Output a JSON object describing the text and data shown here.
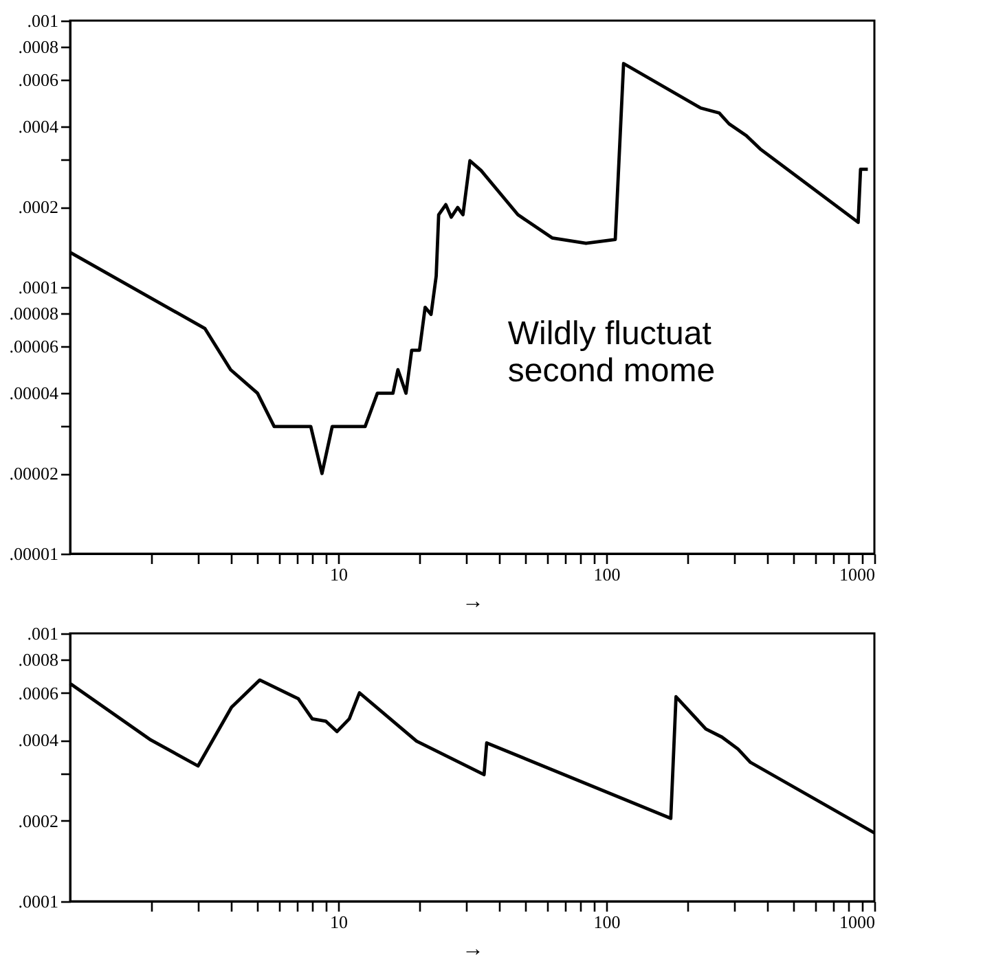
{
  "chart_data": [
    {
      "type": "line",
      "xlabel": "→",
      "log": "xy",
      "grid": false,
      "marker": "none",
      "line_style": "solid",
      "xlim": [
        1,
        1000
      ],
      "ylim": [
        1e-05,
        0.001
      ],
      "xticks": [
        {
          "value": 2,
          "label": null
        },
        {
          "value": 3,
          "label": null
        },
        {
          "value": 4,
          "label": null
        },
        {
          "value": 5,
          "label": null
        },
        {
          "value": 6,
          "label": null
        },
        {
          "value": 7,
          "label": null
        },
        {
          "value": 8,
          "label": null
        },
        {
          "value": 9,
          "label": null
        },
        10,
        {
          "value": 20,
          "label": null
        },
        {
          "value": 30,
          "label": null
        },
        {
          "value": 40,
          "label": null
        },
        {
          "value": 50,
          "label": null
        },
        {
          "value": 60,
          "label": null
        },
        {
          "value": 70,
          "label": null
        },
        {
          "value": 80,
          "label": null
        },
        {
          "value": 90,
          "label": null
        },
        100,
        {
          "value": 200,
          "label": null
        },
        {
          "value": 300,
          "label": null
        },
        {
          "value": 400,
          "label": null
        },
        {
          "value": 500,
          "label": null
        },
        {
          "value": 600,
          "label": null
        },
        {
          "value": 700,
          "label": null
        },
        {
          "value": 800,
          "label": null
        },
        {
          "value": 900,
          "label": null
        },
        1000
      ],
      "yticks": [
        {
          "value": 0.001,
          "label": ".001"
        },
        {
          "value": 0.0008,
          "label": ".0008"
        },
        {
          "value": 0.0006,
          "label": ".0006"
        },
        {
          "value": 0.0004,
          "label": ".0004"
        },
        {
          "value": 0.0003,
          "label": null
        },
        {
          "value": 0.0002,
          "label": ".0002"
        },
        {
          "value": 0.0001,
          "label": ".0001"
        },
        {
          "value": 8e-05,
          "label": ".00008"
        },
        {
          "value": 6e-05,
          "label": ".00006"
        },
        {
          "value": 4e-05,
          "label": ".00004"
        },
        {
          "value": 3e-05,
          "label": null
        },
        {
          "value": 2e-05,
          "label": ".00002"
        },
        {
          "value": 1e-05,
          "label": ".00001"
        }
      ],
      "annotations": [
        "Wildly fluctuat\nsecond mome"
      ],
      "series": [
        {
          "color": "#000000",
          "x": [
            1,
            3.18,
            3.97,
            5.0,
            5.77,
            7.9,
            8.7,
            9.5,
            12.6,
            14.0,
            16,
            16.7,
            17.9,
            18.8,
            20.1,
            21.1,
            22.2,
            23.2,
            23.7,
            25.2,
            26.4,
            27.9,
            29.2,
            31,
            34.1,
            46.8,
            62.8,
            84,
            108,
            116,
            225,
            264,
            287,
            333,
            375,
            870,
            888,
            945
          ],
          "values": [
            0.000135,
            7e-05,
            4.9e-05,
            4e-05,
            3e-05,
            3e-05,
            2e-05,
            3e-05,
            3e-05,
            4e-05,
            4e-05,
            4.9e-05,
            4e-05,
            5.8e-05,
            5.8e-05,
            8.4e-05,
            7.9e-05,
            0.00011,
            0.000187,
            0.000204,
            0.000183,
            0.000199,
            0.000187,
            0.000298,
            0.000274,
            0.000187,
            0.000153,
            0.000146,
            0.000151,
            0.00069,
            0.00047,
            0.00045,
            0.00041,
            0.00037,
            0.00033,
            0.000175,
            0.000277,
            0.000277
          ]
        }
      ]
    },
    {
      "type": "line",
      "xlabel": "→",
      "log": "xy",
      "grid": false,
      "marker": "none",
      "line_style": "solid",
      "xlim": [
        1,
        1000
      ],
      "ylim": [
        0.0001,
        0.001
      ],
      "xticks": [
        {
          "value": 2,
          "label": null
        },
        {
          "value": 3,
          "label": null
        },
        {
          "value": 4,
          "label": null
        },
        {
          "value": 5,
          "label": null
        },
        {
          "value": 6,
          "label": null
        },
        {
          "value": 7,
          "label": null
        },
        {
          "value": 8,
          "label": null
        },
        {
          "value": 9,
          "label": null
        },
        10,
        {
          "value": 20,
          "label": null
        },
        {
          "value": 30,
          "label": null
        },
        {
          "value": 40,
          "label": null
        },
        {
          "value": 50,
          "label": null
        },
        {
          "value": 60,
          "label": null
        },
        {
          "value": 70,
          "label": null
        },
        {
          "value": 80,
          "label": null
        },
        {
          "value": 90,
          "label": null
        },
        100,
        {
          "value": 200,
          "label": null
        },
        {
          "value": 300,
          "label": null
        },
        {
          "value": 400,
          "label": null
        },
        {
          "value": 500,
          "label": null
        },
        {
          "value": 600,
          "label": null
        },
        {
          "value": 700,
          "label": null
        },
        {
          "value": 800,
          "label": null
        },
        {
          "value": 900,
          "label": null
        },
        1000
      ],
      "yticks": [
        {
          "value": 0.001,
          "label": ".001"
        },
        {
          "value": 0.0008,
          "label": ".0008"
        },
        {
          "value": 0.0006,
          "label": ".0006"
        },
        {
          "value": 0.0004,
          "label": ".0004"
        },
        {
          "value": 0.0003,
          "label": null
        },
        {
          "value": 0.0002,
          "label": ".0002"
        },
        {
          "value": 0.0001,
          "label": ".0001"
        }
      ],
      "series": [
        {
          "color": "#000000",
          "x": [
            1.0,
            2.0,
            3.0,
            4.0,
            5.1,
            7.1,
            8.0,
            9.0,
            9.9,
            11.0,
            12.0,
            19.6,
            35,
            35.8,
            174,
            182,
            235,
            270,
            310,
            345,
            1000
          ],
          "values": [
            0.00065,
            0.0004,
            0.00032,
            0.00053,
            0.00067,
            0.00057,
            0.00048,
            0.00047,
            0.00043,
            0.00048,
            0.0006,
            0.000396,
            0.000297,
            0.00039,
            0.000204,
            0.00058,
            0.00044,
            0.00041,
            0.00037,
            0.00033,
            0.00018
          ]
        }
      ]
    }
  ]
}
